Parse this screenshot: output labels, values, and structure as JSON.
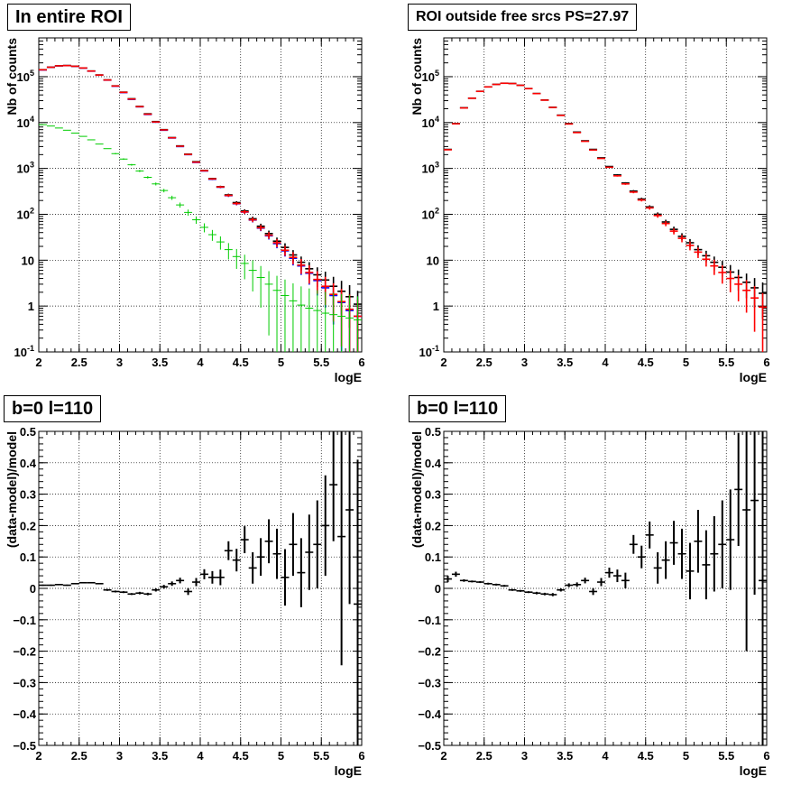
{
  "colors": {
    "data": "#000000",
    "model_total": "#ff0000",
    "model_alt": "#0000ff",
    "component": "#00cc00"
  },
  "chart_data": [
    {
      "type": "scatter",
      "title": "In entire ROI",
      "xlabel": "logE",
      "ylabel": "Nb of counts",
      "xlim": [
        2,
        6
      ],
      "ylim": [
        0.1,
        700000
      ],
      "yscale": "log",
      "grid": true,
      "x_ticks": [
        "2",
        "2.5",
        "3",
        "3.5",
        "4",
        "4.5",
        "5",
        "5.5",
        "6"
      ],
      "y_ticks": [
        "10^-1",
        "1",
        "10",
        "10^2",
        "10^3",
        "10^4",
        "10^5"
      ],
      "x": [
        2.05,
        2.15,
        2.25,
        2.35,
        2.45,
        2.55,
        2.65,
        2.75,
        2.85,
        2.95,
        3.05,
        3.15,
        3.25,
        3.35,
        3.45,
        3.55,
        3.65,
        3.75,
        3.85,
        3.95,
        4.05,
        4.15,
        4.25,
        4.35,
        4.45,
        4.55,
        4.65,
        4.75,
        4.85,
        4.95,
        5.05,
        5.15,
        5.25,
        5.35,
        5.45,
        5.55,
        5.65,
        5.75,
        5.85,
        5.95
      ],
      "series": [
        {
          "style": "model_alt",
          "values": [
            140000,
            160000,
            172000,
            174000,
            168000,
            154000,
            132000,
            108000,
            84000,
            62000,
            45000,
            32000,
            22000,
            15000,
            10200,
            6800,
            4600,
            3000,
            2000,
            1350,
            880,
            580,
            390,
            255,
            170,
            112,
            75,
            50,
            34,
            23,
            16,
            11,
            7.5,
            5.2,
            3.6,
            2.5,
            1.7,
            1.2,
            0.8,
            0.6
          ]
        },
        {
          "style": "data",
          "values": [
            142000,
            161000,
            173000,
            175000,
            169000,
            155000,
            133000,
            109000,
            85000,
            63000,
            46000,
            33000,
            22500,
            15500,
            10500,
            7000,
            4700,
            3100,
            2050,
            1400,
            900,
            600,
            400,
            265,
            180,
            118,
            80,
            55,
            38,
            26,
            19,
            13,
            9,
            6.5,
            4.8,
            3.7,
            2.7,
            2.1,
            1.6,
            1.1
          ]
        },
        {
          "style": "model_total",
          "values": [
            141000,
            160500,
            172500,
            174500,
            168500,
            154500,
            132500,
            108500,
            84500,
            62500,
            45500,
            32500,
            22200,
            15200,
            10300,
            6900,
            4650,
            3050,
            2020,
            1370,
            890,
            590,
            395,
            258,
            172,
            113,
            76,
            51,
            35,
            24,
            16.5,
            11.5,
            7.8,
            5.4,
            3.8,
            2.7,
            1.8,
            1.25,
            0.85,
            0.6
          ]
        },
        {
          "style": "component",
          "values": [
            9000,
            8400,
            7600,
            6800,
            5900,
            5000,
            4200,
            3400,
            2700,
            2100,
            1600,
            1200,
            880,
            640,
            460,
            330,
            230,
            160,
            110,
            76,
            52,
            36,
            25,
            17,
            12,
            8.5,
            6,
            4.2,
            3,
            2.2,
            1.7,
            1.3,
            1.05,
            0.9,
            0.8,
            0.7,
            0.65,
            0.6,
            0.55,
            0.5
          ]
        }
      ]
    },
    {
      "type": "scatter",
      "title": "ROI outside free srcs PS=27.97",
      "xlabel": "logE",
      "ylabel": "Nb of counts",
      "xlim": [
        2,
        6
      ],
      "ylim": [
        0.1,
        700000
      ],
      "yscale": "log",
      "grid": true,
      "x_ticks": [
        "2",
        "2.5",
        "3",
        "3.5",
        "4",
        "4.5",
        "5",
        "5.5",
        "6"
      ],
      "y_ticks": [
        "10^-1",
        "1",
        "10",
        "10^2",
        "10^3",
        "10^4",
        "10^5"
      ],
      "x": [
        2.05,
        2.15,
        2.25,
        2.35,
        2.45,
        2.55,
        2.65,
        2.75,
        2.85,
        2.95,
        3.05,
        3.15,
        3.25,
        3.35,
        3.45,
        3.55,
        3.65,
        3.75,
        3.85,
        3.95,
        4.05,
        4.15,
        4.25,
        4.35,
        4.45,
        4.55,
        4.65,
        4.75,
        4.85,
        4.95,
        5.05,
        5.15,
        5.25,
        5.35,
        5.45,
        5.55,
        5.65,
        5.75,
        5.85,
        5.95
      ],
      "series": [
        {
          "style": "data",
          "values": [
            2600,
            9500,
            21000,
            34000,
            48000,
            60000,
            68000,
            72000,
            71000,
            65000,
            55000,
            43000,
            31000,
            21500,
            14500,
            9500,
            6200,
            4000,
            2600,
            1700,
            1100,
            720,
            480,
            320,
            215,
            145,
            100,
            68,
            47,
            33,
            24,
            17,
            12.5,
            9,
            7,
            5.5,
            4.2,
            3.3,
            2.5,
            1.9
          ]
        },
        {
          "style": "model_total",
          "values": [
            2550,
            9400,
            20800,
            33800,
            47800,
            59800,
            67800,
            71800,
            70800,
            64800,
            54800,
            42800,
            30800,
            21300,
            14300,
            9300,
            6050,
            3900,
            2520,
            1650,
            1060,
            690,
            460,
            305,
            205,
            138,
            94,
            63,
            43,
            30,
            21,
            15,
            10.5,
            7.5,
            5.4,
            4,
            3,
            2.2,
            1.5,
            0.95
          ]
        }
      ]
    },
    {
      "type": "scatter",
      "title": "b=0 l=110",
      "xlabel": "logE",
      "ylabel": "(data-model)/model",
      "xlim": [
        2,
        6
      ],
      "ylim": [
        -0.5,
        0.5
      ],
      "grid": true,
      "x_ticks": [
        "2",
        "2.5",
        "3",
        "3.5",
        "4",
        "4.5",
        "5",
        "5.5",
        "6"
      ],
      "y_ticks": [
        "-0.5",
        "-0.4",
        "-0.3",
        "-0.2",
        "-0.1",
        "0",
        "0.1",
        "0.2",
        "0.3",
        "0.4",
        "0.5"
      ],
      "x": [
        2.05,
        2.15,
        2.25,
        2.35,
        2.45,
        2.55,
        2.65,
        2.75,
        2.85,
        2.95,
        3.05,
        3.15,
        3.25,
        3.35,
        3.45,
        3.55,
        3.65,
        3.75,
        3.85,
        3.95,
        4.05,
        4.15,
        4.25,
        4.35,
        4.45,
        4.55,
        4.65,
        4.75,
        4.85,
        4.95,
        5.05,
        5.15,
        5.25,
        5.35,
        5.45,
        5.55,
        5.65,
        5.75,
        5.85,
        5.95
      ],
      "values": [
        0.01,
        0.01,
        0.012,
        0.01,
        0.015,
        0.018,
        0.018,
        0.015,
        -0.005,
        -0.01,
        -0.012,
        -0.018,
        -0.015,
        -0.018,
        -0.005,
        0.005,
        0.015,
        0.025,
        -0.01,
        0.02,
        0.045,
        0.035,
        0.035,
        0.12,
        0.09,
        0.155,
        0.065,
        0.1,
        0.15,
        0.11,
        0.035,
        0.14,
        0.05,
        0.115,
        0.14,
        0.2,
        0.33,
        0.165,
        0.25,
        -0.05
      ],
      "errors": [
        0.002,
        0.002,
        0.002,
        0.002,
        0.002,
        0.002,
        0.002,
        0.002,
        0.003,
        0.003,
        0.003,
        0.003,
        0.004,
        0.004,
        0.005,
        0.006,
        0.007,
        0.009,
        0.011,
        0.013,
        0.016,
        0.02,
        0.025,
        0.03,
        0.036,
        0.043,
        0.05,
        0.06,
        0.07,
        0.08,
        0.09,
        0.1,
        0.11,
        0.12,
        0.14,
        0.16,
        0.18,
        0.41,
        0.3,
        0.46
      ]
    },
    {
      "type": "scatter",
      "title": "b=0 l=110",
      "xlabel": "logE",
      "ylabel": "(data-model)/model",
      "xlim": [
        2,
        6
      ],
      "ylim": [
        -0.5,
        0.5
      ],
      "grid": true,
      "x_ticks": [
        "2",
        "2.5",
        "3",
        "3.5",
        "4",
        "4.5",
        "5",
        "5.5",
        "6"
      ],
      "y_ticks": [
        "-0.5",
        "-0.4",
        "-0.3",
        "-0.2",
        "-0.1",
        "0",
        "0.1",
        "0.2",
        "0.3",
        "0.4",
        "0.5"
      ],
      "x": [
        2.05,
        2.15,
        2.25,
        2.35,
        2.45,
        2.55,
        2.65,
        2.75,
        2.85,
        2.95,
        3.05,
        3.15,
        3.25,
        3.35,
        3.45,
        3.55,
        3.65,
        3.75,
        3.85,
        3.95,
        4.05,
        4.15,
        4.25,
        4.35,
        4.45,
        4.55,
        4.65,
        4.75,
        4.85,
        4.95,
        5.05,
        5.15,
        5.25,
        5.35,
        5.45,
        5.55,
        5.65,
        5.75,
        5.85,
        5.95
      ],
      "values": [
        0.03,
        0.045,
        0.025,
        0.022,
        0.02,
        0.015,
        0.012,
        0.008,
        -0.005,
        -0.008,
        -0.012,
        -0.015,
        -0.018,
        -0.02,
        -0.005,
        0.01,
        0.012,
        0.025,
        -0.01,
        0.02,
        0.05,
        0.04,
        0.025,
        0.14,
        0.1,
        0.17,
        0.065,
        0.09,
        0.145,
        0.11,
        0.055,
        0.15,
        0.075,
        0.11,
        0.14,
        0.155,
        0.315,
        0.25,
        0.28,
        0.025
      ],
      "errors": [
        0.01,
        0.008,
        0.004,
        0.003,
        0.003,
        0.003,
        0.003,
        0.003,
        0.003,
        0.003,
        0.003,
        0.004,
        0.004,
        0.005,
        0.005,
        0.006,
        0.007,
        0.009,
        0.011,
        0.013,
        0.016,
        0.02,
        0.025,
        0.03,
        0.036,
        0.043,
        0.05,
        0.06,
        0.07,
        0.08,
        0.09,
        0.1,
        0.11,
        0.12,
        0.14,
        0.16,
        0.18,
        0.45,
        0.3,
        0.55
      ]
    }
  ]
}
